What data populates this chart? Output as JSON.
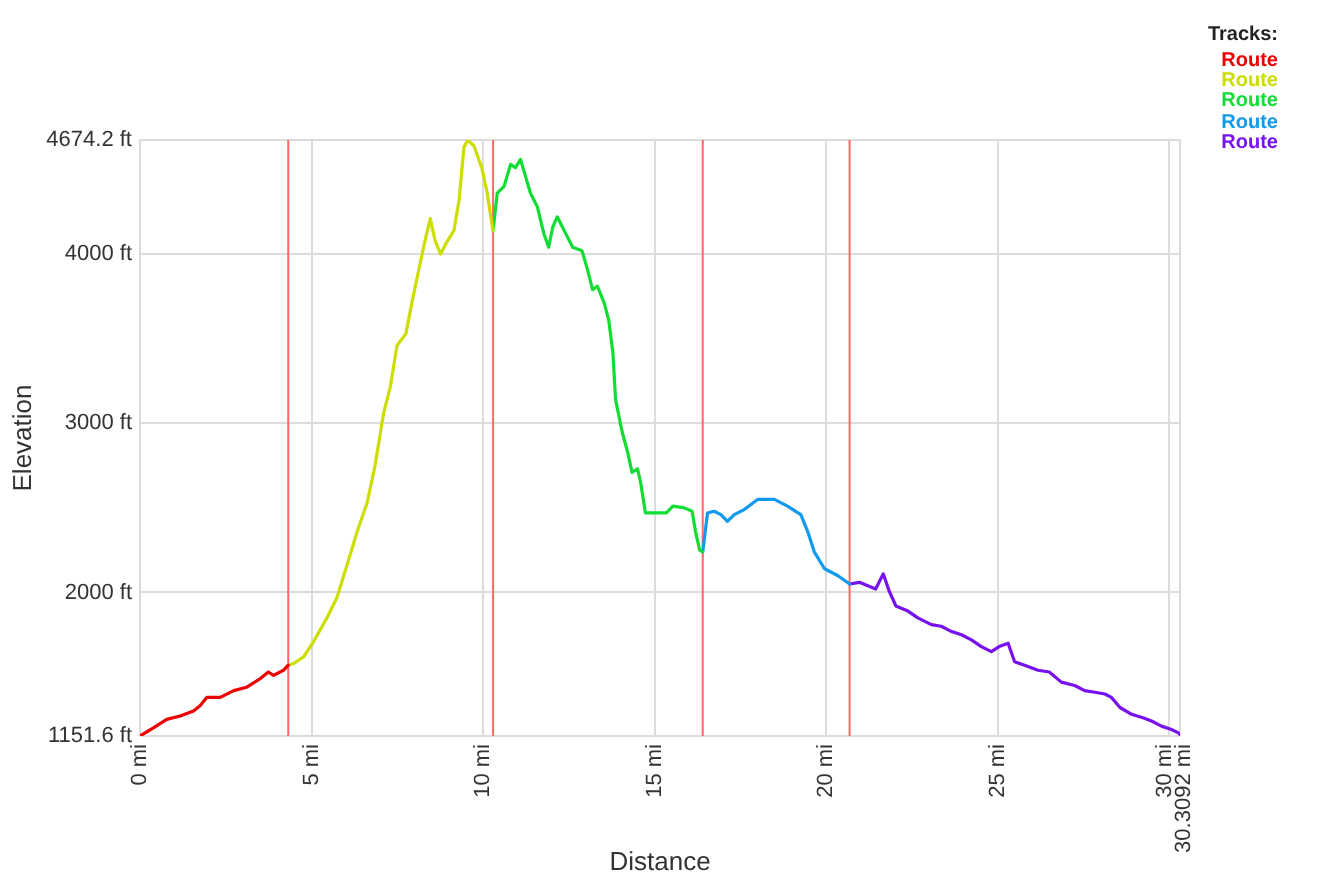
{
  "chart_data": {
    "type": "line",
    "xlabel": "Distance",
    "ylabel": "Elevation",
    "legend_title": "Tracks:",
    "legend": "top right",
    "grid": true,
    "xlim": [
      0,
      30.3092
    ],
    "xticks": [
      {
        "value": 0,
        "label": "0 mi"
      },
      {
        "value": 5,
        "label": "5 mi"
      },
      {
        "value": 10,
        "label": "10 mi"
      },
      {
        "value": 15,
        "label": "15 mi"
      },
      {
        "value": 20,
        "label": "20 mi"
      },
      {
        "value": 25,
        "label": "25 mi"
      },
      {
        "value": 30,
        "label": "30 mi"
      },
      {
        "value": 30.3092,
        "label": "30.3092 mi"
      }
    ],
    "ylim": [
      1151.6,
      4674.2
    ],
    "yticks": [
      {
        "value": 1151.6,
        "label": "1151.6 ft"
      },
      {
        "value": 2000,
        "label": "2000 ft"
      },
      {
        "value": 3000,
        "label": "3000 ft"
      },
      {
        "value": 4000,
        "label": "4000 ft"
      },
      {
        "value": 4674.2,
        "label": "4674.2 ft"
      }
    ],
    "ref_lines": [
      {
        "axis": "x",
        "value": 4.32,
        "color": "#ff6666"
      },
      {
        "axis": "x",
        "value": 10.29,
        "color": "#ff6666"
      },
      {
        "axis": "x",
        "value": 16.4,
        "color": "#ff6666"
      },
      {
        "axis": "x",
        "value": 20.68,
        "color": "#ff6666"
      }
    ],
    "series": [
      {
        "name": "Route",
        "color": "#ee0000",
        "x": [
          0,
          0.39,
          0.78,
          1.17,
          1.56,
          1.75,
          1.95,
          2.34,
          2.73,
          3.11,
          3.5,
          3.74,
          3.89,
          4.18,
          4.32
        ],
        "values": [
          1151.6,
          1200,
          1250,
          1270,
          1300,
          1330,
          1380,
          1380,
          1420,
          1440,
          1490,
          1530,
          1510,
          1540,
          1570
        ]
      },
      {
        "name": "Route",
        "color": "#ccdd00",
        "x": [
          4.32,
          4.48,
          4.77,
          5.06,
          5.45,
          5.74,
          6.03,
          6.33,
          6.62,
          6.85,
          7.1,
          7.3,
          7.49,
          7.75,
          7.94,
          8.17,
          8.33,
          8.46,
          8.6,
          8.76,
          8.91,
          9.15,
          9.3,
          9.44,
          9.55,
          9.73,
          9.96,
          10.12,
          10.24,
          10.29
        ],
        "values": [
          1570,
          1580,
          1620,
          1710,
          1850,
          1970,
          2160,
          2360,
          2530,
          2750,
          3060,
          3220,
          3460,
          3530,
          3730,
          3950,
          4100,
          4210,
          4080,
          4000,
          4060,
          4140,
          4320,
          4630,
          4674.2,
          4640,
          4510,
          4360,
          4200,
          4140
        ]
      },
      {
        "name": "Route",
        "color": "#11dd33",
        "x": [
          10.29,
          10.41,
          10.61,
          10.8,
          10.94,
          11.09,
          11.19,
          11.38,
          11.58,
          11.77,
          11.91,
          12.03,
          12.16,
          12.36,
          12.61,
          12.88,
          13.04,
          13.19,
          13.33,
          13.53,
          13.66,
          13.78,
          13.86,
          14.05,
          14.21,
          14.34,
          14.5,
          14.59,
          14.73,
          14.98,
          15.34,
          15.53,
          15.86,
          16.09,
          16.19,
          16.31,
          16.4
        ],
        "values": [
          4140,
          4360,
          4400,
          4530,
          4510,
          4560,
          4490,
          4360,
          4280,
          4120,
          4040,
          4160,
          4220,
          4140,
          4040,
          4020,
          3910,
          3790,
          3810,
          3710,
          3610,
          3420,
          3140,
          2950,
          2830,
          2710,
          2730,
          2650,
          2470,
          2470,
          2470,
          2510,
          2500,
          2480,
          2360,
          2250,
          2240
        ]
      },
      {
        "name": "Route",
        "color": "#1199ee",
        "x": [
          16.4,
          16.54,
          16.73,
          16.93,
          17.12,
          17.32,
          17.61,
          18,
          18.49,
          18.87,
          19.26,
          19.46,
          19.65,
          19.95,
          20.33,
          20.68
        ],
        "values": [
          2240,
          2470,
          2480,
          2460,
          2420,
          2460,
          2490,
          2550,
          2550,
          2510,
          2460,
          2360,
          2240,
          2140,
          2100,
          2050
        ]
      },
      {
        "name": "Route",
        "color": "#7711ee",
        "x": [
          20.68,
          20.97,
          21.21,
          21.44,
          21.66,
          21.83,
          22.03,
          22.38,
          22.67,
          23.06,
          23.35,
          23.64,
          23.94,
          24.23,
          24.52,
          24.81,
          25.04,
          25.3,
          25.49,
          25.78,
          26.17,
          26.5,
          26.85,
          27.24,
          27.53,
          27.83,
          28.12,
          28.31,
          28.56,
          28.9,
          29.23,
          29.48,
          29.77,
          30.06,
          30.26,
          30.3092
        ],
        "values": [
          2050,
          2060,
          2040,
          2020,
          2110,
          2010,
          1920,
          1890,
          1850,
          1810,
          1800,
          1770,
          1750,
          1720,
          1680,
          1650,
          1680,
          1700,
          1590,
          1570,
          1540,
          1530,
          1470,
          1450,
          1420,
          1410,
          1400,
          1380,
          1320,
          1280,
          1260,
          1240,
          1210,
          1190,
          1170,
          1160
        ]
      }
    ]
  }
}
